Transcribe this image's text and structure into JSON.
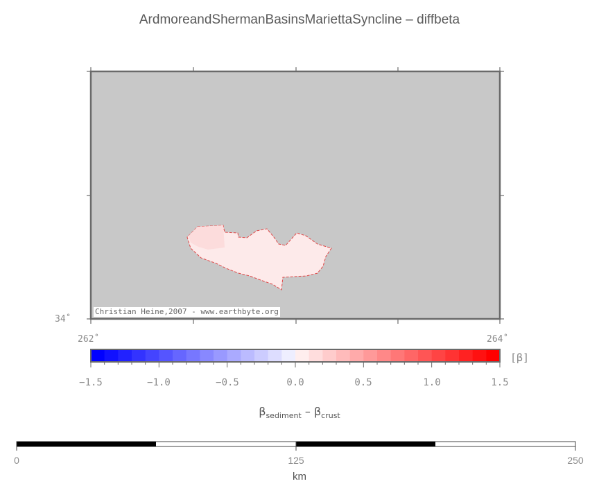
{
  "title": "ArdmoreandShermanBasinsMariettaSyncline – diffbeta",
  "map": {
    "lat_label": "34˚",
    "lon_labels": [
      "262˚",
      "264˚"
    ],
    "credit": "Christian Heine,2007 - www.earthbyte.org",
    "background_color": "#c8c8c8"
  },
  "colorbar": {
    "tick_labels": [
      "−1.5",
      "−1.0",
      "−0.5",
      "0.0",
      "0.5",
      "1.0",
      "1.5"
    ],
    "min": -1.5,
    "max": 1.5,
    "unit": "[β]",
    "title_main1": "β",
    "title_sub1": "sediment",
    "title_mid": " – ",
    "title_main2": "β",
    "title_sub2": "crust",
    "low_color": "#0000ff",
    "mid_color": "#ffffff",
    "high_color": "#ff0000"
  },
  "scalebar": {
    "labels": [
      "0",
      "125",
      "250"
    ],
    "unit": "km"
  }
}
